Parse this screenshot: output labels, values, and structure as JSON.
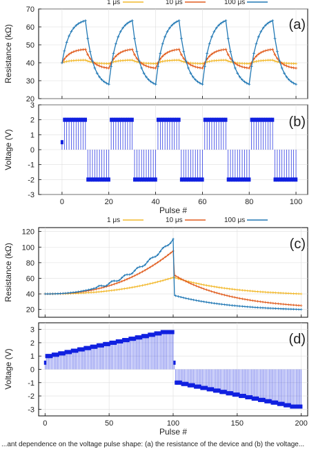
{
  "figure": {
    "caption_fragment": "...ant dependence on the voltage pulse shape: (a) the resistance of the device and (b) the voltage..."
  },
  "legend_top": {
    "entries": [
      {
        "name": "1 μs",
        "color": "#f2b82b"
      },
      {
        "name": "10 μs",
        "color": "#e05a1b"
      },
      {
        "name": "100 μs",
        "color": "#1f77b4"
      }
    ]
  },
  "legend_mid": {
    "entries": [
      {
        "name": "1 μs",
        "color": "#f2b82b"
      },
      {
        "name": "10 μs",
        "color": "#e05a1b"
      },
      {
        "name": "100 μs",
        "color": "#1f77b4"
      }
    ]
  },
  "chart_data": [
    {
      "id": "a",
      "type": "line",
      "panel_label": "(a)",
      "ylabel": "Resistance (kΩ)",
      "xlabel": "",
      "xlim": [
        -10,
        105
      ],
      "ylim": [
        20,
        70
      ],
      "yticks": [
        "20",
        "30",
        "40",
        "50",
        "60",
        "70"
      ],
      "grid": true,
      "pattern": "square wave ±2 V, 10 pulses per half period, 100 pulses",
      "series": [
        {
          "name": "1 μs",
          "color": "#f2b82b",
          "start": 40,
          "peak": 41.5,
          "valley": 39.5
        },
        {
          "name": "10 μs",
          "color": "#e05a1b",
          "start": 40,
          "peak": 47.5,
          "valley": 37
        },
        {
          "name": "100 μs",
          "color": "#1f77b4",
          "start": 40,
          "peak": 63.5,
          "valley": 28
        }
      ]
    },
    {
      "id": "b",
      "type": "line",
      "panel_label": "(b)",
      "ylabel": "Voltage (V)",
      "xlabel": "Pulse #",
      "xlim": [
        -10,
        105
      ],
      "ylim": [
        -3,
        3
      ],
      "xticks": [
        "0",
        "20",
        "40",
        "60",
        "80",
        "100"
      ],
      "yticks": [
        "-3",
        "-2",
        "-1",
        "0",
        "1",
        "2",
        "3"
      ],
      "grid": true,
      "series": [
        {
          "name": "voltage",
          "color": "#1020e0",
          "first_pulse": 0.5,
          "high": 2,
          "low": -2,
          "half_period": 10,
          "count": 100
        }
      ]
    },
    {
      "id": "c",
      "type": "line",
      "panel_label": "(c)",
      "ylabel": "Resistance (kΩ)",
      "xlabel": "",
      "xlim": [
        -5,
        205
      ],
      "ylim": [
        10,
        125
      ],
      "yticks": [
        "20",
        "40",
        "60",
        "80",
        "100",
        "120"
      ],
      "grid": true,
      "series": [
        {
          "name": "1 μs",
          "color": "#f2b82b",
          "start": 40,
          "at_100": 61,
          "after_reverse": 61,
          "end": 40
        },
        {
          "name": "10 μs",
          "color": "#e05a1b",
          "start": 40,
          "at_100": 95,
          "after_reverse": 64,
          "end": 25
        },
        {
          "name": "100 μs",
          "color": "#1f77b4",
          "start": 40,
          "at_100": 110,
          "after_reverse": 38,
          "end": 20
        }
      ]
    },
    {
      "id": "d",
      "type": "line",
      "panel_label": "(d)",
      "ylabel": "Voltage (V)",
      "xlabel": "Pulse #",
      "xlim": [
        -5,
        205
      ],
      "ylim": [
        -3.5,
        3.5
      ],
      "xticks": [
        "0",
        "50",
        "100",
        "150",
        "200"
      ],
      "yticks": [
        "-3",
        "-2",
        "-1",
        "0",
        "1",
        "2",
        "3"
      ],
      "grid": true,
      "series": [
        {
          "name": "voltage",
          "color": "#1020e0",
          "pos_start": 1.0,
          "pos_end": 2.8,
          "neg_start": -1.0,
          "neg_end": -2.8,
          "step": 0.1,
          "steps_per_level": 5
        }
      ]
    }
  ]
}
